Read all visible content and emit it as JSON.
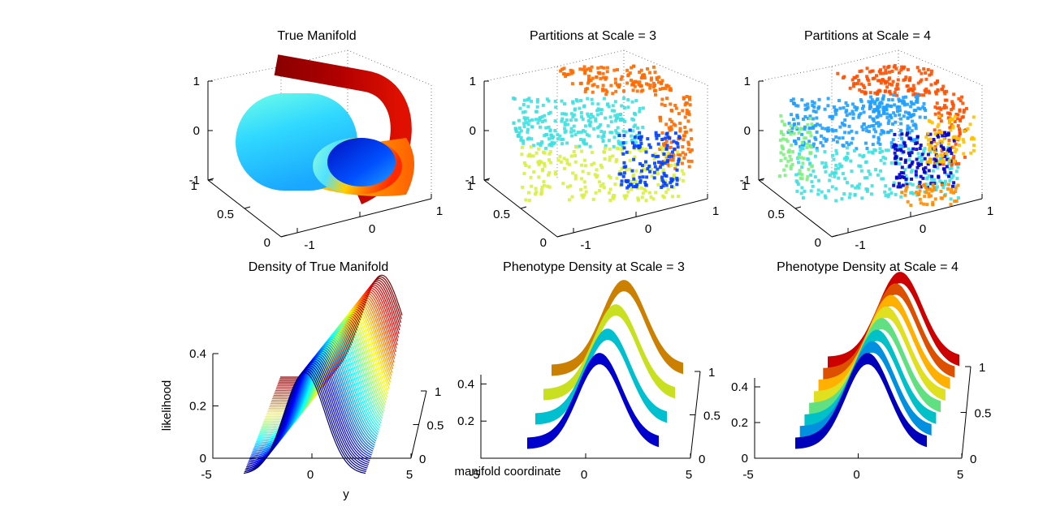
{
  "chart_data": [
    {
      "type": "scatter",
      "title": "True Manifold",
      "axis_ticks": {
        "x": [
          "-1",
          "0",
          "1"
        ],
        "y": [
          "0",
          "0.5",
          "1"
        ],
        "z": [
          "-1",
          "0",
          "1"
        ]
      },
      "xlim": [
        -1,
        1
      ],
      "ylim": [
        0,
        1
      ],
      "zlim": [
        -1,
        1
      ],
      "grid": true,
      "colormap": "jet",
      "point_style": "continuous"
    },
    {
      "type": "scatter",
      "title": "Partitions at Scale = 3",
      "axis_ticks": {
        "x": [
          "-1",
          "0",
          "1"
        ],
        "y": [
          "0",
          "0.5",
          "1"
        ],
        "z": [
          "-1",
          "0",
          "1"
        ]
      },
      "xlim": [
        -1,
        1
      ],
      "ylim": [
        0,
        1
      ],
      "zlim": [
        -1,
        1
      ],
      "grid": true,
      "partition_count": 4,
      "partition_colors": [
        "#0040ff",
        "#40e0e0",
        "#d8f040",
        "#ff6a00"
      ],
      "point_style": "noisy"
    },
    {
      "type": "scatter",
      "title": "Partitions at Scale = 4",
      "axis_ticks": {
        "x": [
          "-1",
          "0",
          "1"
        ],
        "y": [
          "0",
          "0.5",
          "1"
        ],
        "z": [
          "-1",
          "0",
          "1"
        ]
      },
      "xlim": [
        -1,
        1
      ],
      "ylim": [
        0,
        1
      ],
      "zlim": [
        -1,
        1
      ],
      "grid": true,
      "partition_count": 8,
      "partition_colors": [
        "#0000c8",
        "#1fa0ff",
        "#40e0e0",
        "#80f080",
        "#d0f040",
        "#ffc000",
        "#ff8c00",
        "#ff5000"
      ],
      "point_style": "noisy"
    },
    {
      "type": "line",
      "title": "Density of True Manifold",
      "xlabel": "y",
      "zlabel": "likelihood",
      "axis_ticks": {
        "x": [
          "-5",
          "0",
          "5"
        ],
        "y": [
          "0",
          "0.5",
          "1"
        ],
        "z": [
          "0",
          "0.2",
          "0.4"
        ]
      },
      "xlim": [
        -5,
        5
      ],
      "ylim": [
        0,
        1
      ],
      "zlim": [
        0,
        0.4
      ],
      "curve_count": 60,
      "peak_likelihood": 0.39,
      "peak_x_near": 0,
      "peak_x_far": 2,
      "colormap": "jet"
    },
    {
      "type": "area",
      "title": "Phenotype Density at Scale = 3",
      "ylabel": "manifold coordinate",
      "axis_ticks": {
        "x": [
          "-5",
          "0",
          "5"
        ],
        "y": [
          "0",
          "0.5",
          "1"
        ],
        "z": [
          "0.2",
          "0.4"
        ]
      },
      "xlim": [
        -5,
        5
      ],
      "ylim": [
        0,
        1
      ],
      "zlim": [
        0,
        0.45
      ],
      "band_colors": [
        "#0000cc",
        "#00c0d0",
        "#c8e020",
        "#cc8000"
      ]
    },
    {
      "type": "area",
      "title": "Phenotype Density at Scale = 4",
      "axis_ticks": {
        "x": [
          "-5",
          "0",
          "5"
        ],
        "y": [
          "0",
          "0.5",
          "1"
        ],
        "z": [
          "0",
          "0.2",
          "0.4"
        ]
      },
      "xlim": [
        -5,
        5
      ],
      "ylim": [
        0,
        1
      ],
      "zlim": [
        0,
        0.45
      ],
      "band_colors": [
        "#0000bb",
        "#0090e0",
        "#00c0c8",
        "#60e080",
        "#e0e020",
        "#ffb000",
        "#dd5000",
        "#cc0000"
      ]
    }
  ]
}
